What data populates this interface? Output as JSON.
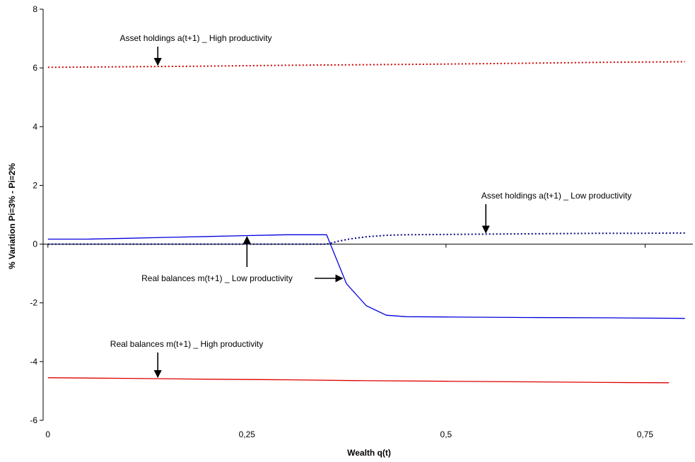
{
  "chart_data": {
    "type": "line",
    "xlabel": "Wealth q(t)",
    "ylabel": "% Variation Pi=3% - Pi=2%",
    "xlim": [
      -0.006,
      0.81
    ],
    "ylim": [
      -6,
      8
    ],
    "x_ticks": [
      0,
      0.25,
      0.5,
      0.75
    ],
    "x_tick_labels": [
      "0",
      "0,25",
      "0,5",
      "0,75"
    ],
    "y_ticks": [
      -6,
      -4,
      -2,
      0,
      2,
      4,
      6,
      8
    ],
    "y_tick_labels": [
      "-6",
      "-4",
      "-2",
      "0",
      "2",
      "4",
      "6",
      "8"
    ],
    "grid": false,
    "legend": "none",
    "series": [
      {
        "name": "Asset holdings a(t+1) _ High productivity",
        "color": "#cc0000",
        "style": "dotted",
        "x": [
          0,
          0.1,
          0.2,
          0.3,
          0.4,
          0.5,
          0.6,
          0.7,
          0.8
        ],
        "y": [
          6.02,
          6.04,
          6.06,
          6.09,
          6.11,
          6.13,
          6.16,
          6.19,
          6.21
        ]
      },
      {
        "name": "Real balances m(t+1) _ High productivity",
        "color": "#e00000",
        "style": "solid",
        "x": [
          0,
          0.1,
          0.2,
          0.3,
          0.4,
          0.5,
          0.6,
          0.7,
          0.78
        ],
        "y": [
          -4.55,
          -4.57,
          -4.6,
          -4.62,
          -4.65,
          -4.67,
          -4.69,
          -4.71,
          -4.72
        ]
      },
      {
        "name": "Asset holdings a(t+1) _ Low productivity",
        "color": "#000080",
        "style": "dotted",
        "x": [
          0,
          0.05,
          0.1,
          0.15,
          0.2,
          0.25,
          0.3,
          0.35,
          0.365,
          0.38,
          0.4,
          0.425,
          0.45,
          0.5,
          0.55,
          0.6,
          0.65,
          0.7,
          0.75,
          0.8
        ],
        "y": [
          0,
          0,
          0,
          0,
          0,
          0,
          0,
          0,
          0.1,
          0.18,
          0.25,
          0.3,
          0.32,
          0.33,
          0.34,
          0.35,
          0.36,
          0.37,
          0.37,
          0.38
        ]
      },
      {
        "name": "Real balances m(t+1) _ Low productivity",
        "color": "#0000dd",
        "style": "solid",
        "x": [
          0,
          0.05,
          0.1,
          0.15,
          0.2,
          0.25,
          0.3,
          0.35,
          0.375,
          0.4,
          0.425,
          0.45,
          0.5,
          0.6,
          0.7,
          0.8
        ],
        "y": [
          0.17,
          0.17,
          0.2,
          0.23,
          0.26,
          0.29,
          0.32,
          0.32,
          -1.35,
          -2.1,
          -2.42,
          -2.47,
          -2.48,
          -2.5,
          -2.51,
          -2.53
        ]
      }
    ],
    "annotations": [
      {
        "text": "Asset holdings a(t+1) _ High productivity",
        "arrow_x": 0.138,
        "arrow_y": 6.05,
        "arrow": "down"
      },
      {
        "text": "Asset holdings a(t+1) _ Low productivity",
        "arrow_x": 0.55,
        "arrow_y": 0.34,
        "arrow": "down"
      },
      {
        "text": "Real balances m(t+1) _ Low productivity",
        "arrow_x": 0.37,
        "arrow_y": -1.2,
        "arrow": "right",
        "arrow2_x": 0.25,
        "arrow2_y": 0.3
      },
      {
        "text": "Real balances m(t+1) _ High productivity",
        "arrow_x": 0.138,
        "arrow_y": -4.58,
        "arrow": "down"
      }
    ]
  }
}
